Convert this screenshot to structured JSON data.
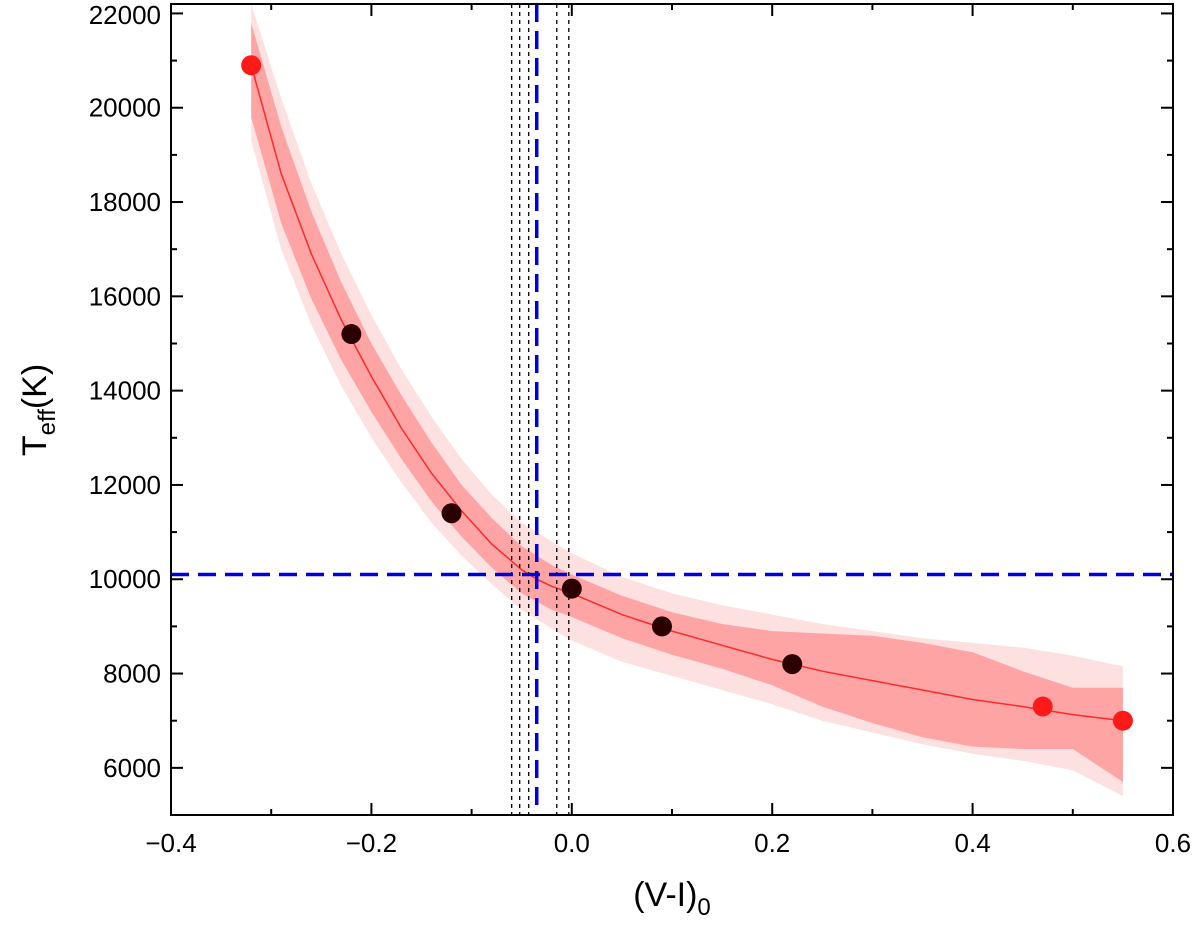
{
  "chart_data": {
    "type": "scatter",
    "xlabel": {
      "main": "(V-I)",
      "sub": "0"
    },
    "ylabel": {
      "main": "T",
      "sub": "eff",
      "suffix": "(K)"
    },
    "xlim": [
      -0.4,
      0.6
    ],
    "ylim": [
      5000,
      22200
    ],
    "x_ticks": [
      -0.4,
      -0.2,
      0.0,
      0.2,
      0.4,
      0.6
    ],
    "x_tick_labels": [
      "−0.4",
      "−0.2",
      "0.0",
      "0.2",
      "0.4",
      "0.6"
    ],
    "x_minor_ticks": [
      -0.3,
      -0.1,
      0.1,
      0.3,
      0.5
    ],
    "y_ticks": [
      6000,
      8000,
      10000,
      12000,
      14000,
      16000,
      18000,
      20000,
      22000
    ],
    "y_tick_labels": [
      "6000",
      "8000",
      "10000",
      "12000",
      "14000",
      "16000",
      "18000",
      "20000",
      "22000"
    ],
    "y_minor_ticks": [
      7000,
      9000,
      11000,
      13000,
      15000,
      17000,
      19000,
      21000
    ],
    "grid": false,
    "legend": "none",
    "series": [
      {
        "kind": "points",
        "color": "#2b0000",
        "x": [
          -0.22,
          -0.12,
          0.0,
          0.09,
          0.22
        ],
        "y": [
          15200,
          11400,
          9800,
          9000,
          8200
        ]
      },
      {
        "kind": "points",
        "color": "#ff1a1a",
        "x": [
          -0.32,
          0.47,
          0.55
        ],
        "y": [
          20900,
          7300,
          7000
        ]
      },
      {
        "kind": "fit-line",
        "color": "#ff2a2a",
        "x": [
          -0.32,
          -0.29,
          -0.26,
          -0.23,
          -0.2,
          -0.17,
          -0.14,
          -0.11,
          -0.08,
          -0.05,
          -0.035,
          -0.02,
          0.0,
          0.05,
          0.1,
          0.15,
          0.2,
          0.25,
          0.3,
          0.35,
          0.4,
          0.45,
          0.5,
          0.55
        ],
        "y": [
          20900,
          18600,
          16900,
          15500,
          14300,
          13200,
          12250,
          11450,
          10750,
          10200,
          10000,
          9850,
          9700,
          9250,
          8900,
          8600,
          8300,
          8050,
          7850,
          7650,
          7450,
          7300,
          7130,
          7000
        ]
      }
    ],
    "bands": [
      {
        "name": "outer-confidence-band",
        "color": "#fde0e0",
        "x": [
          -0.32,
          -0.29,
          -0.26,
          -0.23,
          -0.2,
          -0.17,
          -0.14,
          -0.11,
          -0.08,
          -0.05,
          -0.02,
          0.0,
          0.05,
          0.1,
          0.15,
          0.2,
          0.25,
          0.3,
          0.35,
          0.4,
          0.45,
          0.5,
          0.55
        ],
        "upper": [
          22200,
          20200,
          18400,
          16900,
          15600,
          14450,
          13450,
          12550,
          11800,
          11200,
          10800,
          10550,
          10050,
          9700,
          9450,
          9250,
          9050,
          8900,
          8750,
          8650,
          8550,
          8380,
          8150
        ],
        "lower": [
          19300,
          17000,
          15400,
          14100,
          13000,
          12050,
          11200,
          10500,
          9900,
          9350,
          8950,
          8700,
          8250,
          7950,
          7650,
          7350,
          7000,
          6750,
          6500,
          6300,
          6150,
          5950,
          5400
        ]
      },
      {
        "name": "inner-confidence-band",
        "color": "#ffa4a4",
        "x": [
          -0.32,
          -0.29,
          -0.26,
          -0.23,
          -0.2,
          -0.17,
          -0.14,
          -0.11,
          -0.08,
          -0.05,
          -0.02,
          0.0,
          0.05,
          0.1,
          0.15,
          0.2,
          0.25,
          0.3,
          0.35,
          0.4,
          0.45,
          0.5,
          0.55
        ],
        "upper": [
          21800,
          19600,
          17800,
          16300,
          15000,
          13900,
          12900,
          12000,
          11300,
          10700,
          10300,
          10100,
          9650,
          9300,
          9050,
          8900,
          8850,
          8800,
          8650,
          8450,
          8050,
          7700,
          7700
        ],
        "lower": [
          19800,
          17550,
          15950,
          14650,
          13550,
          12550,
          11650,
          10900,
          10250,
          9700,
          9350,
          9200,
          8750,
          8400,
          8100,
          7750,
          7300,
          6950,
          6650,
          6450,
          6400,
          6400,
          5700
        ]
      }
    ],
    "reference_lines": {
      "color": "#0000dd",
      "vertical_x": -0.035,
      "horizontal_y": 10100
    },
    "boundary_lines": {
      "color": "#000000",
      "x": [
        -0.06,
        -0.052,
        -0.043,
        -0.015,
        -0.003
      ]
    }
  }
}
